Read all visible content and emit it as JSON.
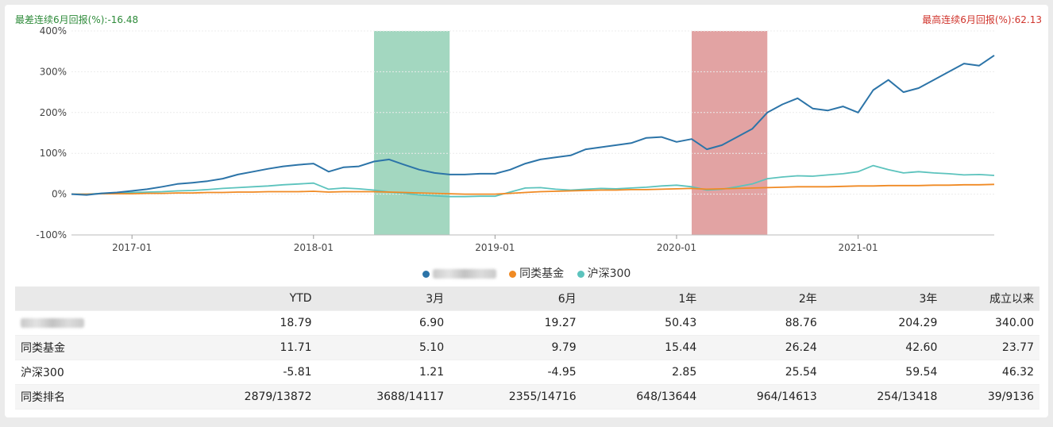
{
  "notes": {
    "worst": "最差连续6月回报(%):-16.48",
    "best": "最高连续6月回报(%):62.13"
  },
  "colors": {
    "fund": "#2c74a8",
    "peer": "#f08a24",
    "index": "#5cc3bd",
    "worst_band": "#a3d7c0",
    "best_band": "#e2a3a3"
  },
  "chart_data": {
    "type": "line",
    "xlabel": "",
    "ylabel": "",
    "ylim": [
      -100,
      400
    ],
    "y_ticks": [
      -100,
      0,
      100,
      200,
      300,
      400
    ],
    "y_tick_labels": [
      "-100%",
      "0%",
      "100%",
      "200%",
      "300%",
      "400%"
    ],
    "x_ticks": [
      "2017-01",
      "2018-01",
      "2019-01",
      "2020-01",
      "2021-01"
    ],
    "x_range": [
      "2016-09",
      "2021-10"
    ],
    "grid": "horizontal",
    "legend_position": "bottom-center",
    "shaded_periods": [
      {
        "kind": "worst",
        "start": "2018-05",
        "end": "2018-10"
      },
      {
        "kind": "best",
        "start": "2020-02",
        "end": "2020-07"
      }
    ],
    "x": [
      "2016-09",
      "2016-10",
      "2016-11",
      "2016-12",
      "2017-01",
      "2017-02",
      "2017-03",
      "2017-04",
      "2017-05",
      "2017-06",
      "2017-07",
      "2017-08",
      "2017-09",
      "2017-10",
      "2017-11",
      "2017-12",
      "2018-01",
      "2018-02",
      "2018-03",
      "2018-04",
      "2018-05",
      "2018-06",
      "2018-07",
      "2018-08",
      "2018-09",
      "2018-10",
      "2018-11",
      "2018-12",
      "2019-01",
      "2019-02",
      "2019-03",
      "2019-04",
      "2019-05",
      "2019-06",
      "2019-07",
      "2019-08",
      "2019-09",
      "2019-10",
      "2019-11",
      "2019-12",
      "2020-01",
      "2020-02",
      "2020-03",
      "2020-04",
      "2020-05",
      "2020-06",
      "2020-07",
      "2020-08",
      "2020-09",
      "2020-10",
      "2020-11",
      "2020-12",
      "2021-01",
      "2021-02",
      "2021-03",
      "2021-04",
      "2021-05",
      "2021-06",
      "2021-07",
      "2021-08",
      "2021-09",
      "2021-10"
    ],
    "series": [
      {
        "key": "fund",
        "name": "",
        "values": [
          0,
          -2,
          2,
          4,
          8,
          12,
          18,
          25,
          28,
          32,
          38,
          48,
          55,
          62,
          68,
          72,
          75,
          55,
          66,
          68,
          80,
          85,
          72,
          60,
          52,
          48,
          48,
          50,
          50,
          60,
          75,
          85,
          90,
          95,
          110,
          115,
          120,
          125,
          138,
          140,
          128,
          135,
          110,
          120,
          140,
          160,
          200,
          220,
          235,
          210,
          205,
          215,
          200,
          255,
          280,
          250,
          260,
          280,
          300,
          320,
          315,
          340
        ]
      },
      {
        "key": "peer",
        "name": "同类基金",
        "values": [
          0,
          0,
          1,
          1,
          1,
          2,
          2,
          3,
          3,
          4,
          4,
          5,
          5,
          6,
          6,
          6,
          7,
          5,
          6,
          6,
          6,
          5,
          4,
          3,
          2,
          1,
          0,
          0,
          0,
          2,
          4,
          6,
          7,
          8,
          9,
          10,
          10,
          11,
          11,
          12,
          13,
          14,
          12,
          13,
          14,
          15,
          16,
          17,
          18,
          18,
          18,
          19,
          20,
          20,
          21,
          21,
          21,
          22,
          22,
          23,
          23,
          24
        ]
      },
      {
        "key": "index",
        "name": "沪深300",
        "values": [
          0,
          0,
          2,
          3,
          4,
          5,
          6,
          8,
          9,
          11,
          14,
          16,
          18,
          20,
          23,
          25,
          27,
          12,
          15,
          13,
          10,
          5,
          2,
          -2,
          -4,
          -6,
          -6,
          -5,
          -5,
          5,
          15,
          16,
          12,
          10,
          12,
          14,
          13,
          15,
          17,
          20,
          22,
          18,
          10,
          12,
          18,
          25,
          38,
          42,
          45,
          44,
          47,
          50,
          55,
          70,
          60,
          52,
          55,
          52,
          50,
          47,
          48,
          46
        ]
      }
    ]
  },
  "table": {
    "headers": [
      "",
      "YTD",
      "3月",
      "6月",
      "1年",
      "2年",
      "3年",
      "成立以来"
    ],
    "rows": [
      {
        "label": "",
        "values": [
          "18.79",
          "6.90",
          "19.27",
          "50.43",
          "88.76",
          "204.29",
          "340.00"
        ]
      },
      {
        "label": "同类基金",
        "values": [
          "11.71",
          "5.10",
          "9.79",
          "15.44",
          "26.24",
          "42.60",
          "23.77"
        ]
      },
      {
        "label": "沪深300",
        "values": [
          "-5.81",
          "1.21",
          "-4.95",
          "2.85",
          "25.54",
          "59.54",
          "46.32"
        ]
      },
      {
        "label": "同类排名",
        "values": [
          "2879/13872",
          "3688/14117",
          "2355/14716",
          "648/13644",
          "964/14613",
          "254/13418",
          "39/9136"
        ]
      }
    ]
  }
}
